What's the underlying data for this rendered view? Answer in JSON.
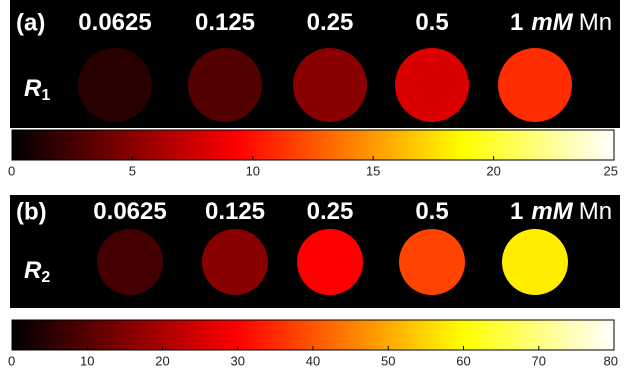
{
  "chart_data": [
    {
      "type": "phantom",
      "panel_label": "(a)",
      "quantity": "R",
      "quantity_subscript": "1",
      "categories": [
        "0.0625",
        "0.125",
        "0.25",
        "0.5",
        "1"
      ],
      "unit": "mM",
      "element": "Mn",
      "values": [
        1.5,
        3,
        5,
        8,
        11
      ],
      "colormap": "hot",
      "clim": [
        0,
        25
      ],
      "cticks": [
        0,
        5,
        10,
        15,
        20,
        25
      ]
    },
    {
      "type": "phantom",
      "panel_label": "(b)",
      "quantity": "R",
      "quantity_subscript": "2",
      "categories": [
        "0.0625",
        "0.125",
        "0.25",
        "0.5",
        "1"
      ],
      "unit": "mM",
      "element": "Mn",
      "values": [
        8,
        16,
        30,
        38,
        58
      ],
      "colormap": "hot",
      "clim": [
        0,
        80
      ],
      "cticks": [
        0,
        10,
        20,
        30,
        40,
        50,
        60,
        70,
        80
      ]
    }
  ]
}
